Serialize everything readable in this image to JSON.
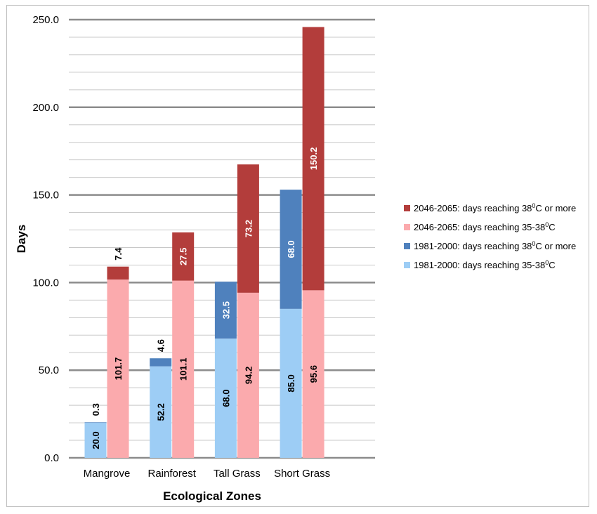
{
  "chart_data": {
    "type": "bar",
    "stacked": true,
    "groups_per_category": 2,
    "title": "",
    "xlabel": "Ecological Zones",
    "ylabel": "Days",
    "ylim": [
      0,
      250
    ],
    "y_tick_labels": [
      "0.0",
      "50.0",
      "100.0",
      "150.0",
      "200.0",
      "250.0"
    ],
    "categories": [
      "Mangrove",
      "Rainforest",
      "Tall Grass",
      "Short Grass"
    ],
    "grid": "horizontal major and minor",
    "legend_position": "right",
    "series": [
      {
        "name": "1981-2000: days reaching 35-38°C",
        "legend_base": "1981-2000: days reaching 35-38",
        "legend_sup": "0",
        "legend_tail": "C",
        "stack": "1981-2000",
        "color": "#9dcdf5",
        "label_color": "#000000",
        "values": [
          20.0,
          52.2,
          68.0,
          85.0
        ],
        "labels": [
          "20.0",
          "52.2",
          "68.0",
          "85.0"
        ]
      },
      {
        "name": "1981-2000: days reaching 38°C or more",
        "legend_base": "1981-2000: days reaching 38",
        "legend_sup": "0",
        "legend_tail": "C or more",
        "stack": "1981-2000",
        "color": "#4f81bd",
        "label_color": "#ffffff",
        "values": [
          0.3,
          4.6,
          32.5,
          68.0
        ],
        "labels": [
          "0.3",
          "4.6",
          "32.5",
          "68.0"
        ]
      },
      {
        "name": "2046-2065: days reaching 35-38°C",
        "legend_base": "2046-2065: days reaching 35-38",
        "legend_sup": "0",
        "legend_tail": "C",
        "stack": "2046-2065",
        "color": "#fbaaad",
        "label_color": "#000000",
        "values": [
          101.7,
          101.1,
          94.2,
          95.6
        ],
        "labels": [
          "101.7",
          "101.1",
          "94.2",
          "95.6"
        ]
      },
      {
        "name": "2046-2065: days reaching 38°C or more",
        "legend_base": "2046-2065: days reaching 38",
        "legend_sup": "0",
        "legend_tail": "C or more",
        "stack": "2046-2065",
        "color": "#b33d3b",
        "label_color": "#ffffff",
        "values": [
          7.4,
          27.5,
          73.2,
          150.2
        ],
        "labels": [
          "7.4",
          "27.5",
          "73.2",
          "150.2"
        ]
      }
    ],
    "legend_order": [
      3,
      2,
      1,
      0
    ]
  }
}
